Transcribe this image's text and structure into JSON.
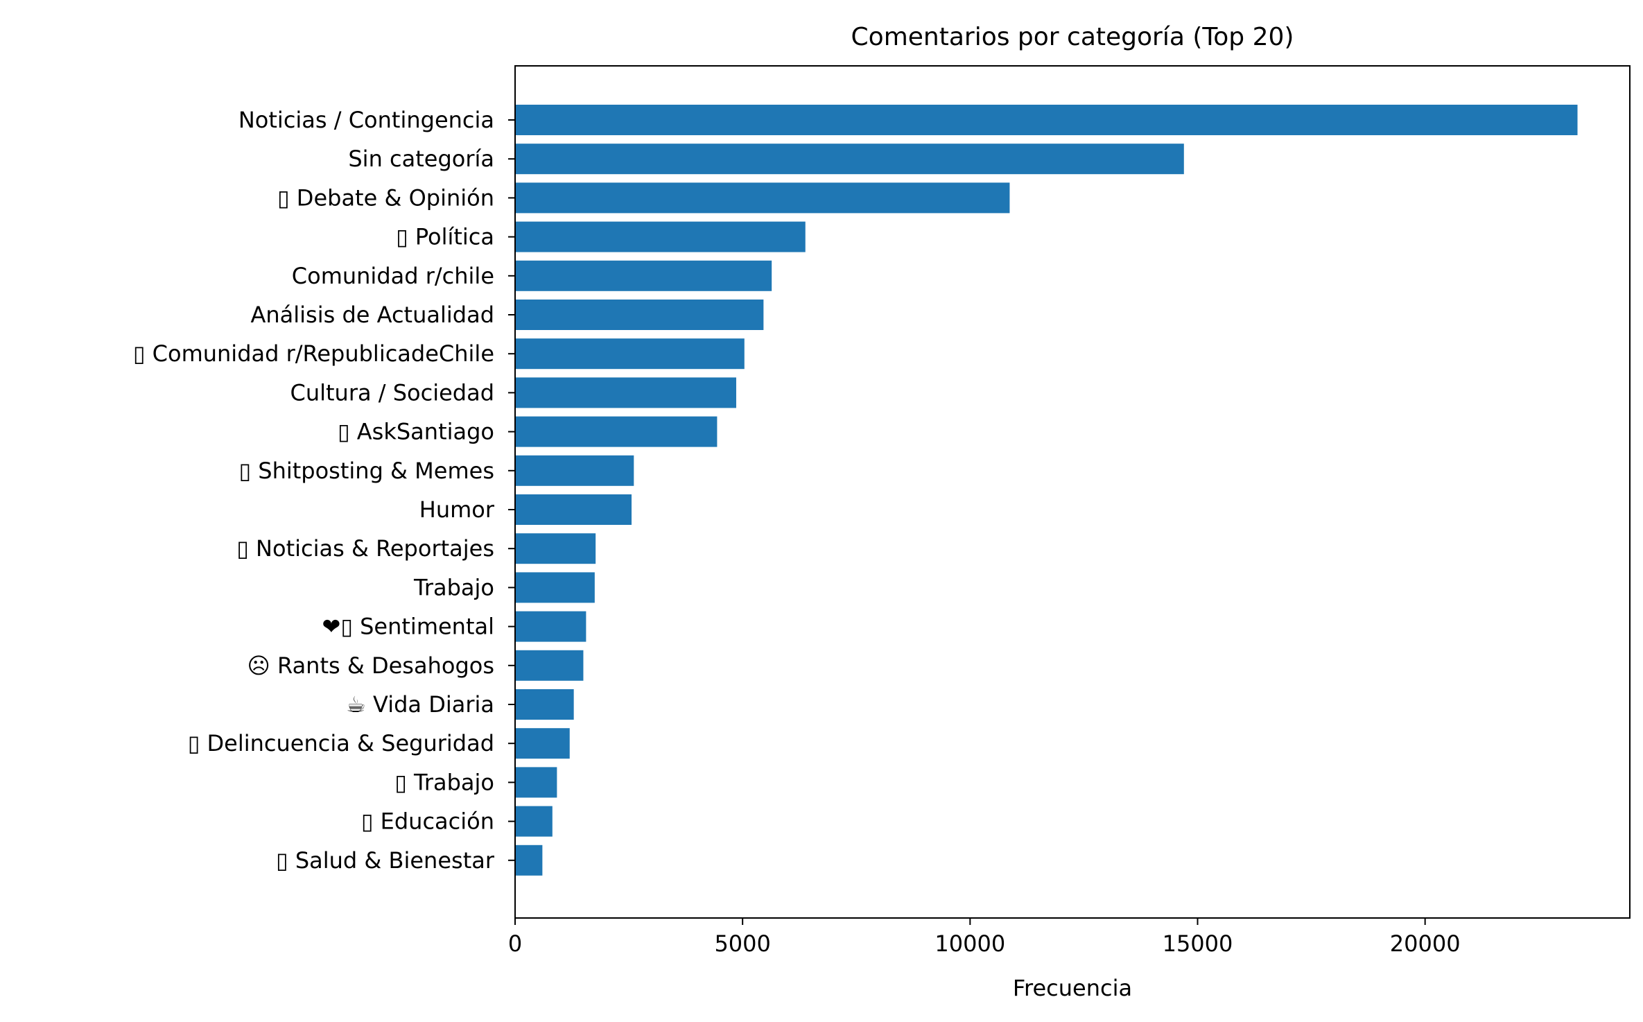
{
  "chart_data": {
    "type": "bar",
    "orientation": "horizontal",
    "title": "Comentarios por categoría (Top 20)",
    "xlabel": "Frecuencia",
    "ylabel": "",
    "xlim": [
      0,
      24500
    ],
    "xticks": [
      0,
      5000,
      10000,
      15000,
      20000
    ],
    "xtick_labels": [
      "0",
      "5000",
      "10000",
      "15000",
      "20000"
    ],
    "grid": false,
    "legend": "none",
    "bar_color": "#1f77b4",
    "categories": [
      "Noticias / Contingencia",
      "Sin categoría",
      "▯ Debate & Opinión",
      "▯ Política",
      "Comunidad r/chile",
      "Análisis de Actualidad",
      "▯ Comunidad r/RepublicadeChile",
      "Cultura / Sociedad",
      "▯ AskSantiago",
      "▯ Shitposting & Memes",
      "Humor",
      "▯ Noticias & Reportajes",
      "Trabajo",
      "❤▯ Sentimental",
      "☹ Rants & Desahogos",
      "☕ Vida Diaria",
      "▯ Delincuencia & Seguridad",
      "▯ Trabajo",
      "▯ Educación",
      "▯ Salud & Bienestar"
    ],
    "values": [
      23350,
      14700,
      10870,
      6380,
      5640,
      5460,
      5040,
      4860,
      4440,
      2610,
      2560,
      1770,
      1750,
      1560,
      1500,
      1290,
      1200,
      920,
      820,
      600
    ]
  }
}
